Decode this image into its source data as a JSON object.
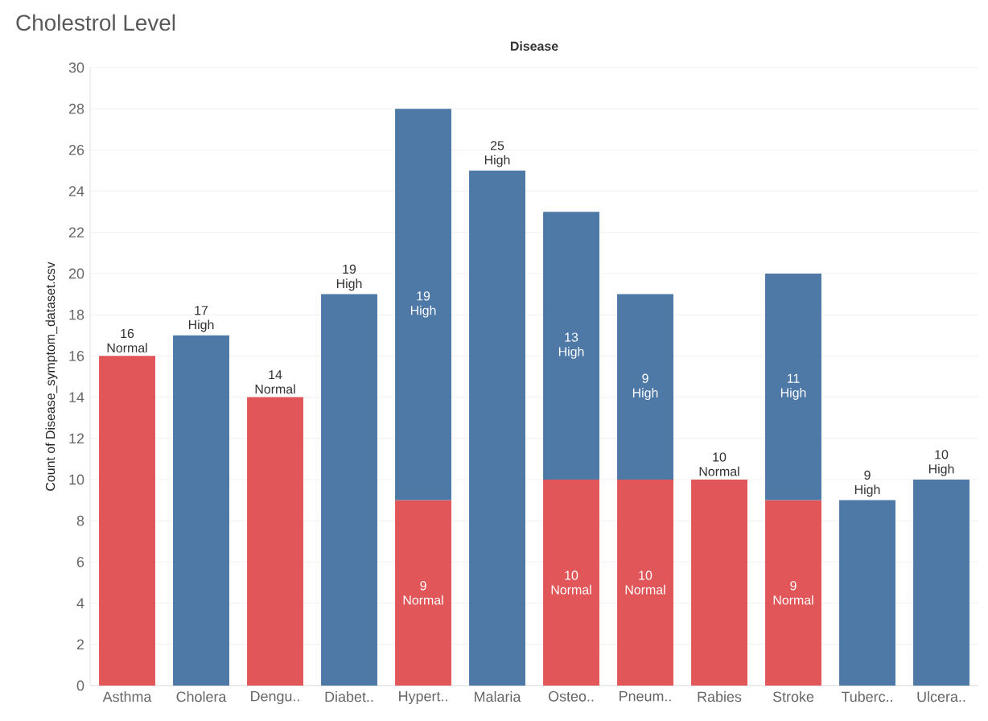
{
  "chart_data": {
    "type": "bar",
    "stacked": true,
    "title": "Cholestrol Level",
    "xlabel": "Disease",
    "ylabel": "Count of Disease_symptom_dataset.csv",
    "categories": [
      "Asthma",
      "Cholera",
      "Dengu..",
      "Diabet..",
      "Hypert..",
      "Malaria",
      "Osteo..",
      "Pneum..",
      "Rabies",
      "Stroke",
      "Tuberc..",
      "Ulcera.."
    ],
    "series": [
      {
        "name": "Normal",
        "color": "#e15759",
        "values": [
          16,
          null,
          14,
          null,
          9,
          null,
          10,
          10,
          10,
          9,
          null,
          null
        ]
      },
      {
        "name": "High",
        "color": "#4e79a7",
        "values": [
          null,
          17,
          null,
          19,
          19,
          25,
          13,
          9,
          null,
          11,
          9,
          10
        ]
      }
    ],
    "ylim": [
      0,
      30
    ],
    "yticks": [
      0,
      2,
      4,
      6,
      8,
      10,
      12,
      14,
      16,
      18,
      20,
      22,
      24,
      26,
      28,
      30
    ],
    "grid": "y",
    "data_labels": true
  }
}
